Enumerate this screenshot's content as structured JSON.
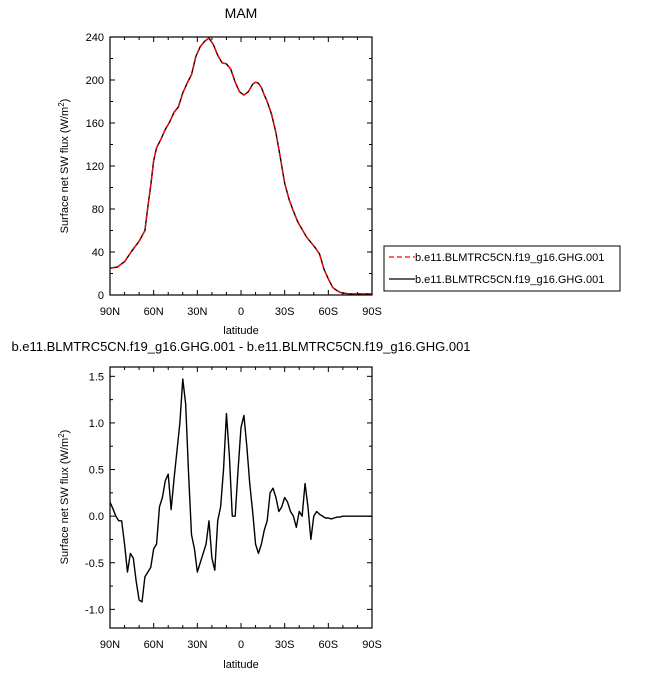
{
  "chart_data": [
    {
      "type": "line",
      "title": "MAM",
      "xlabel": "latitude",
      "ylabel": "Surface net SW flux (W/m",
      "ylabel_sup": "2",
      "ylabel_close": ")",
      "xlim": [
        90,
        -90
      ],
      "ylim": [
        0,
        240
      ],
      "x_ticks": [
        90,
        60,
        30,
        0,
        -30,
        -60,
        -90
      ],
      "x_tick_labels": [
        "90N",
        "60N",
        "30N",
        "0",
        "30S",
        "60S",
        "90S"
      ],
      "y_ticks": [
        0,
        40,
        80,
        120,
        160,
        200,
        240
      ],
      "y_tick_labels": [
        "0",
        "40",
        "80",
        "120",
        "160",
        "200",
        "240"
      ],
      "legend_position": "right",
      "series": [
        {
          "name": "b.e11.BLMTRC5CN.f19_g16.GHG.001",
          "color": "#ff0000",
          "dash": "dashed",
          "x": [
            90,
            85,
            80,
            75,
            70,
            66,
            64,
            62,
            60,
            58,
            55,
            52,
            49,
            46,
            43,
            40,
            37,
            34,
            31,
            28,
            25,
            22,
            19,
            16,
            13,
            10,
            7,
            4,
            1,
            -2,
            -5,
            -8,
            -10,
            -12,
            -14,
            -16,
            -18,
            -21,
            -24,
            -27,
            -30,
            -33,
            -36,
            -39,
            -42,
            -45,
            -48,
            -51,
            -54,
            -57,
            -60,
            -63,
            -66,
            -69,
            -72,
            -75,
            -78,
            -81,
            -84,
            -87,
            -90
          ],
          "y": [
            25,
            26,
            31,
            41,
            50,
            60,
            82,
            102,
            125,
            137,
            145,
            154,
            161,
            170,
            175,
            188,
            197,
            205,
            222,
            231,
            236,
            239,
            233,
            223,
            216,
            215,
            210,
            198,
            189,
            186,
            189,
            196,
            198,
            197,
            193,
            186,
            180,
            168,
            151,
            128,
            104,
            89,
            78,
            68,
            61,
            54,
            49,
            44,
            38,
            24,
            15,
            7,
            4,
            2,
            1.5,
            1,
            1,
            1,
            1,
            1,
            1
          ]
        },
        {
          "name": "b.e11.BLMTRC5CN.f19_g16.GHG.001",
          "color": "#000000",
          "dash": "solid",
          "x": [
            90,
            85,
            80,
            75,
            70,
            66,
            64,
            62,
            60,
            58,
            55,
            52,
            49,
            46,
            43,
            40,
            37,
            34,
            31,
            28,
            25,
            22,
            19,
            16,
            13,
            10,
            7,
            4,
            1,
            -2,
            -5,
            -8,
            -10,
            -12,
            -14,
            -16,
            -18,
            -21,
            -24,
            -27,
            -30,
            -33,
            -36,
            -39,
            -42,
            -45,
            -48,
            -51,
            -54,
            -57,
            -60,
            -63,
            -66,
            -69,
            -72,
            -75,
            -78,
            -81,
            -84,
            -87,
            -90
          ],
          "y": [
            25,
            26,
            31,
            41,
            50,
            60,
            82,
            102,
            125,
            137,
            145,
            154,
            161,
            170,
            175,
            188,
            197,
            205,
            222,
            231,
            236,
            239,
            233,
            223,
            216,
            215,
            210,
            198,
            189,
            186,
            189,
            196,
            198,
            197,
            193,
            186,
            180,
            168,
            151,
            128,
            104,
            89,
            78,
            68,
            61,
            54,
            49,
            44,
            38,
            24,
            15,
            7,
            4,
            2,
            1.5,
            1,
            1,
            1,
            1,
            1,
            1
          ]
        }
      ]
    },
    {
      "type": "line",
      "title": "b.e11.BLMTRC5CN.f19_g16.GHG.001 - b.e11.BLMTRC5CN.f19_g16.GHG.001",
      "xlabel": "latitude",
      "ylabel": "Surface net SW flux (W/m",
      "ylabel_sup": "2",
      "ylabel_close": ")",
      "xlim": [
        90,
        -90
      ],
      "ylim": [
        -1.2,
        1.6
      ],
      "x_ticks": [
        90,
        60,
        30,
        0,
        -30,
        -60,
        -90
      ],
      "x_tick_labels": [
        "90N",
        "60N",
        "30N",
        "0",
        "30S",
        "60S",
        "90S"
      ],
      "y_ticks": [
        -1.0,
        -0.5,
        0.0,
        0.5,
        1.0,
        1.5
      ],
      "y_tick_labels": [
        "-1.0",
        "-0.5",
        "0.0",
        "0.5",
        "1.0",
        "1.5"
      ],
      "series": [
        {
          "color": "#000000",
          "x": [
            90,
            88,
            86,
            84,
            82,
            80,
            78,
            76,
            74,
            72,
            70,
            68,
            66,
            64,
            62,
            60,
            58,
            56,
            54,
            52,
            50,
            48,
            46,
            44,
            42,
            40,
            38,
            36,
            34,
            32,
            30,
            28,
            26,
            24,
            22,
            20,
            18,
            16,
            14,
            12,
            10,
            8,
            6,
            4,
            2,
            0,
            -2,
            -4,
            -6,
            -8,
            -10,
            -12,
            -14,
            -16,
            -18,
            -20,
            -22,
            -24,
            -26,
            -28,
            -30,
            -32,
            -34,
            -36,
            -38,
            -40,
            -42,
            -44,
            -46,
            -48,
            -50,
            -52,
            -54,
            -56,
            -58,
            -60,
            -62,
            -64,
            -66,
            -68,
            -70,
            -72,
            -74,
            -76,
            -78,
            -80,
            -82,
            -84,
            -86,
            -88,
            -90
          ],
          "y": [
            0.15,
            0.08,
            0.0,
            -0.05,
            -0.05,
            -0.3,
            -0.6,
            -0.4,
            -0.45,
            -0.7,
            -0.9,
            -0.92,
            -0.65,
            -0.6,
            -0.55,
            -0.35,
            -0.3,
            0.1,
            0.2,
            0.38,
            0.45,
            0.07,
            0.4,
            0.7,
            1.0,
            1.47,
            1.2,
            0.45,
            -0.2,
            -0.35,
            -0.6,
            -0.5,
            -0.4,
            -0.3,
            -0.05,
            -0.45,
            -0.58,
            -0.05,
            0.1,
            0.5,
            1.1,
            0.65,
            0.0,
            0.0,
            0.5,
            0.95,
            1.08,
            0.75,
            0.35,
            0.05,
            -0.3,
            -0.4,
            -0.3,
            -0.15,
            -0.05,
            0.25,
            0.3,
            0.2,
            0.05,
            0.1,
            0.2,
            0.15,
            0.05,
            0.0,
            -0.12,
            0.05,
            0.0,
            0.35,
            0.1,
            -0.25,
            0.0,
            0.05,
            0.02,
            0.0,
            -0.02,
            -0.02,
            -0.03,
            -0.02,
            -0.01,
            -0.01,
            0.0,
            0.0,
            0.0,
            0.0,
            0.0,
            0.0,
            0.0,
            0.0,
            0.0,
            0.0,
            0.0
          ]
        }
      ]
    }
  ]
}
